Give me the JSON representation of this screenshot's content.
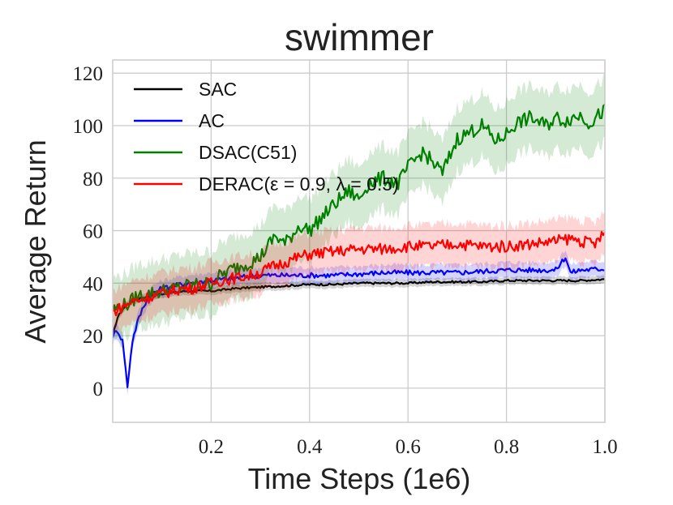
{
  "chart_data": {
    "type": "line",
    "title": "swimmer",
    "xlabel": "Time Steps (1e6)",
    "ylabel": "Average Return",
    "xlim": [
      0.0,
      1.0
    ],
    "ylim": [
      -13,
      125
    ],
    "xticks": [
      0.2,
      0.4,
      0.6,
      0.8,
      1.0
    ],
    "xtick_labels": [
      "0.2",
      "0.4",
      "0.6",
      "0.8",
      "1.0"
    ],
    "yticks": [
      0,
      20,
      40,
      60,
      80,
      100,
      120
    ],
    "ytick_labels": [
      "0",
      "20",
      "40",
      "60",
      "80",
      "100",
      "120"
    ],
    "grid": true,
    "legend_position": "top-left",
    "series": [
      {
        "name": "SAC",
        "color": "#000000",
        "x": [
          0.0,
          0.01,
          0.02,
          0.03,
          0.05,
          0.07,
          0.1,
          0.15,
          0.2,
          0.25,
          0.3,
          0.35,
          0.4,
          0.45,
          0.5,
          0.55,
          0.6,
          0.65,
          0.7,
          0.75,
          0.8,
          0.85,
          0.9,
          0.95,
          1.0
        ],
        "y": [
          20,
          27,
          30,
          32,
          34,
          35,
          36,
          37,
          37,
          38,
          38.5,
          39,
          39.5,
          39.5,
          40,
          40,
          40,
          40.5,
          40.5,
          40.5,
          41,
          41,
          41,
          41,
          41.5
        ],
        "band": 1.5
      },
      {
        "name": "AC",
        "color": "#0000ff",
        "x": [
          0.0,
          0.01,
          0.02,
          0.025,
          0.03,
          0.035,
          0.04,
          0.05,
          0.06,
          0.07,
          0.08,
          0.1,
          0.15,
          0.2,
          0.25,
          0.3,
          0.35,
          0.4,
          0.45,
          0.5,
          0.55,
          0.6,
          0.65,
          0.7,
          0.75,
          0.8,
          0.85,
          0.9,
          0.92,
          0.93,
          0.95,
          1.0
        ],
        "y": [
          20,
          22,
          18,
          10,
          0,
          10,
          18,
          25,
          30,
          34,
          36,
          38,
          40,
          41,
          42,
          43,
          43,
          43,
          43,
          43.5,
          44,
          44,
          44,
          44,
          44.5,
          45,
          45,
          45,
          50,
          44,
          45,
          45.5
        ],
        "band": 3
      },
      {
        "name": "DSAC(C51)",
        "color": "#008000",
        "x": [
          0.0,
          0.03,
          0.05,
          0.1,
          0.15,
          0.2,
          0.22,
          0.25,
          0.28,
          0.3,
          0.33,
          0.35,
          0.38,
          0.4,
          0.43,
          0.45,
          0.48,
          0.5,
          0.52,
          0.55,
          0.58,
          0.6,
          0.63,
          0.65,
          0.67,
          0.7,
          0.72,
          0.75,
          0.78,
          0.8,
          0.82,
          0.85,
          0.88,
          0.9,
          0.92,
          0.95,
          0.97,
          1.0
        ],
        "y": [
          30,
          32,
          35,
          37,
          39,
          40,
          43,
          46,
          48,
          50,
          58,
          55,
          62,
          60,
          66,
          70,
          75,
          72,
          78,
          80,
          78,
          84,
          90,
          86,
          82,
          95,
          97,
          100,
          94,
          97,
          101,
          103,
          100,
          103,
          102,
          104,
          101,
          106
        ],
        "band": 12
      },
      {
        "name": "DERAC(ε = 0.9, λ = 0.5)",
        "color": "#ff0000",
        "x": [
          0.0,
          0.02,
          0.04,
          0.06,
          0.08,
          0.1,
          0.12,
          0.14,
          0.16,
          0.18,
          0.2,
          0.22,
          0.25,
          0.28,
          0.3,
          0.32,
          0.35,
          0.38,
          0.4,
          0.45,
          0.5,
          0.55,
          0.6,
          0.65,
          0.7,
          0.75,
          0.8,
          0.85,
          0.9,
          0.93,
          0.95,
          0.98,
          1.0
        ],
        "y": [
          29,
          31,
          33,
          34,
          35,
          36,
          37,
          38,
          38,
          39,
          40,
          41,
          42,
          43,
          44,
          46,
          48,
          50,
          51,
          52,
          53,
          53,
          54,
          54,
          55,
          54,
          54,
          55,
          56,
          57,
          56,
          55,
          59
        ],
        "band": 8
      }
    ]
  }
}
